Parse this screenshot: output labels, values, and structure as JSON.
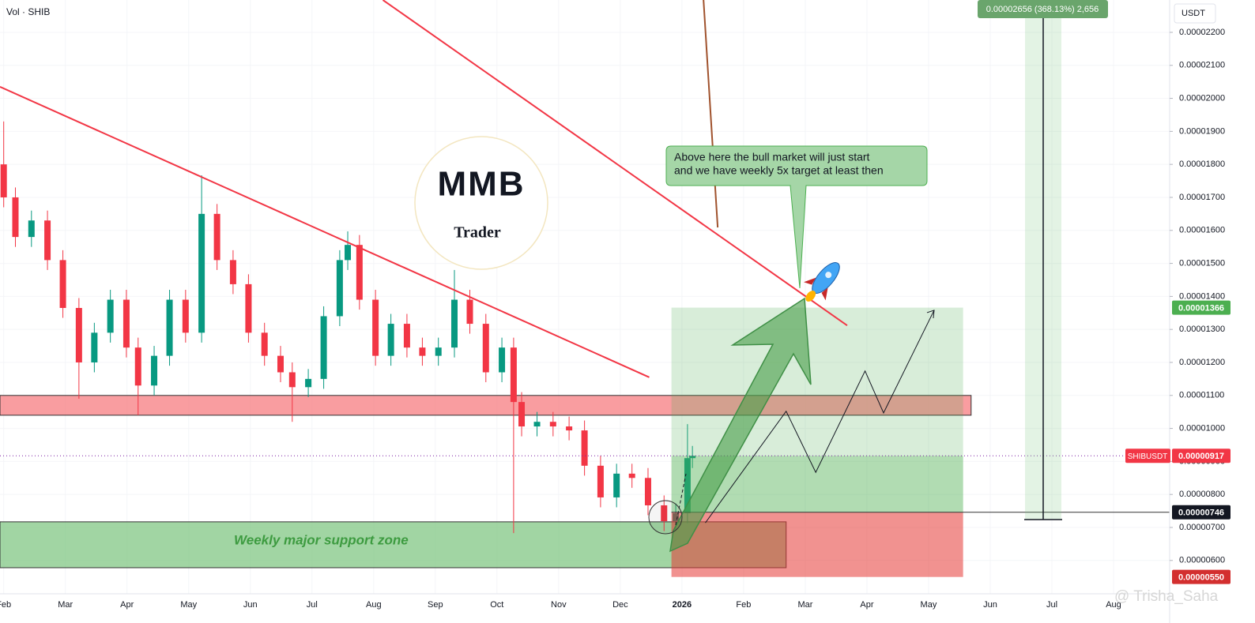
{
  "chart_data": {
    "type": "candlestick",
    "indicator": "Vol · SHIB",
    "currency": "USDT",
    "up_color": "#089981",
    "down_color": "#f23645",
    "grid": true,
    "xlim": [
      0.94,
      19.91
    ],
    "xticks": [
      {
        "value": 1,
        "label": "Feb"
      },
      {
        "value": 2,
        "label": "Mar"
      },
      {
        "value": 3,
        "label": "Apr"
      },
      {
        "value": 4,
        "label": "May"
      },
      {
        "value": 5,
        "label": "Jun"
      },
      {
        "value": 6,
        "label": "Jul"
      },
      {
        "value": 7,
        "label": "Aug"
      },
      {
        "value": 8,
        "label": "Sep"
      },
      {
        "value": 9,
        "label": "Oct"
      },
      {
        "value": 10,
        "label": "Nov"
      },
      {
        "value": 11,
        "label": "Dec"
      },
      {
        "value": 12,
        "label": "2026"
      },
      {
        "value": 13,
        "label": "Feb"
      },
      {
        "value": 14,
        "label": "Mar"
      },
      {
        "value": 15,
        "label": "Apr"
      },
      {
        "value": 16,
        "label": "May"
      },
      {
        "value": 17,
        "label": "Jun"
      },
      {
        "value": 18,
        "label": "Jul"
      },
      {
        "value": 19,
        "label": "Aug"
      }
    ],
    "ylim": [
      4.99e-06,
      2.298e-05
    ],
    "yticks": [
      {
        "value": 6e-06,
        "label": "0.00000600"
      },
      {
        "value": 7e-06,
        "label": "0.00000700"
      },
      {
        "value": 8e-06,
        "label": "0.00000800"
      },
      {
        "value": 9e-06,
        "label": "0.00000900"
      },
      {
        "value": 1e-05,
        "label": "0.00001000"
      },
      {
        "value": 1.1e-05,
        "label": "0.00001100"
      },
      {
        "value": 1.2e-05,
        "label": "0.00001200"
      },
      {
        "value": 1.3e-05,
        "label": "0.00001300"
      },
      {
        "value": 1.4e-05,
        "label": "0.00001400"
      },
      {
        "value": 1.5e-05,
        "label": "0.00001500"
      },
      {
        "value": 1.6e-05,
        "label": "0.00001600"
      },
      {
        "value": 1.7e-05,
        "label": "0.00001700"
      },
      {
        "value": 1.8e-05,
        "label": "0.00001800"
      },
      {
        "value": 1.9e-05,
        "label": "0.00001900"
      },
      {
        "value": 2e-05,
        "label": "0.00002000"
      },
      {
        "value": 2.1e-05,
        "label": "0.00002100"
      },
      {
        "value": 2.2e-05,
        "label": "0.00002200"
      }
    ],
    "x": [
      1.0,
      1.19,
      1.45,
      1.71,
      1.96,
      2.22,
      2.47,
      2.73,
      2.99,
      3.18,
      3.44,
      3.69,
      3.95,
      4.21,
      4.46,
      4.72,
      4.97,
      5.23,
      5.49,
      5.68,
      5.94,
      6.19,
      6.45,
      6.58,
      6.77,
      7.03,
      7.28,
      7.54,
      7.79,
      8.05,
      8.31,
      8.56,
      8.82,
      9.08,
      9.27,
      9.4,
      9.65,
      9.91,
      10.17,
      10.42,
      10.68,
      10.94,
      11.19,
      11.45,
      11.71,
      11.9,
      12.09,
      12.17
    ],
    "open": [
      1.8e-05,
      1.7e-05,
      1.58e-05,
      1.63e-05,
      1.51e-05,
      1.365e-05,
      1.2e-05,
      1.29e-05,
      1.39e-05,
      1.245e-05,
      1.13e-05,
      1.22e-05,
      1.39e-05,
      1.29e-05,
      1.65e-05,
      1.51e-05,
      1.437e-05,
      1.29e-05,
      1.22e-05,
      1.17e-05,
      1.125e-05,
      1.15e-05,
      1.34e-05,
      1.51e-05,
      1.556e-05,
      1.39e-05,
      1.22e-05,
      1.317e-05,
      1.245e-05,
      1.22e-05,
      1.245e-05,
      1.39e-05,
      1.317e-05,
      1.17e-05,
      1.245e-05,
      1.08e-05,
      1.006e-05,
      1.02e-05,
      1.006e-05,
      9.94e-06,
      8.87e-06,
      7.91e-06,
      8.63e-06,
      8.5e-06,
      7.67e-06,
      7.19e-06,
      7.43e-06,
      9.1e-06
    ],
    "high": [
      1.93e-05,
      1.73e-05,
      1.66e-05,
      1.66e-05,
      1.54e-05,
      1.395e-05,
      1.32e-05,
      1.42e-05,
      1.42e-05,
      1.275e-05,
      1.25e-05,
      1.42e-05,
      1.42e-05,
      1.767e-05,
      1.68e-05,
      1.54e-05,
      1.467e-05,
      1.32e-05,
      1.25e-05,
      1.2e-05,
      1.18e-05,
      1.37e-05,
      1.54e-05,
      1.597e-05,
      1.586e-05,
      1.42e-05,
      1.347e-05,
      1.347e-05,
      1.275e-05,
      1.275e-05,
      1.48e-05,
      1.42e-05,
      1.347e-05,
      1.275e-05,
      1.275e-05,
      1.11e-05,
      1.05e-05,
      1.05e-05,
      1.036e-05,
      1.024e-05,
      9.17e-06,
      8.93e-06,
      8.93e-06,
      8.8e-06,
      7.97e-06,
      7.73e-06,
      1.013e-05,
      9.47e-06
    ],
    "low": [
      1.67e-05,
      1.55e-05,
      1.55e-05,
      1.48e-05,
      1.335e-05,
      1.09e-05,
      1.17e-05,
      1.26e-05,
      1.215e-05,
      1.04e-05,
      1.1e-05,
      1.19e-05,
      1.26e-05,
      1.26e-05,
      1.48e-05,
      1.407e-05,
      1.26e-05,
      1.19e-05,
      1.14e-05,
      1.02e-05,
      1.095e-05,
      1.12e-05,
      1.31e-05,
      1.48e-05,
      1.36e-05,
      1.19e-05,
      1.19e-05,
      1.215e-05,
      1.19e-05,
      1.19e-05,
      1.215e-05,
      1.287e-05,
      1.14e-05,
      1.14e-05,
      6.83e-06,
      9.76e-06,
      9.76e-06,
      9.76e-06,
      9.64e-06,
      8.57e-06,
      7.61e-06,
      7.61e-06,
      8.2e-06,
      7.37e-06,
      6.89e-06,
      6.89e-06,
      7.13e-06,
      8.8e-06
    ],
    "close": [
      1.7e-05,
      1.58e-05,
      1.63e-05,
      1.51e-05,
      1.365e-05,
      1.2e-05,
      1.29e-05,
      1.39e-05,
      1.245e-05,
      1.13e-05,
      1.22e-05,
      1.39e-05,
      1.29e-05,
      1.65e-05,
      1.51e-05,
      1.437e-05,
      1.29e-05,
      1.22e-05,
      1.17e-05,
      1.125e-05,
      1.15e-05,
      1.34e-05,
      1.51e-05,
      1.556e-05,
      1.39e-05,
      1.22e-05,
      1.317e-05,
      1.245e-05,
      1.22e-05,
      1.245e-05,
      1.39e-05,
      1.317e-05,
      1.17e-05,
      1.245e-05,
      1.08e-05,
      1.006e-05,
      1.02e-05,
      1.006e-05,
      9.94e-06,
      8.87e-06,
      7.91e-06,
      8.63e-06,
      8.5e-06,
      7.67e-06,
      7.19e-06,
      7.43e-06,
      9.1e-06,
      9.17e-06
    ],
    "last_price": {
      "name": "SHIBUSDT",
      "value": 9.17e-06,
      "label": "0.00000917"
    },
    "zones": [
      {
        "top": 1.1e-05,
        "bottom": 1.04e-05,
        "x": [
          0.94,
          16.69
        ],
        "color": "#f77c80"
      },
      {
        "top": 7.17e-06,
        "bottom": 5.78e-06,
        "x": [
          0.94,
          13.69
        ],
        "color": "#81c784"
      }
    ],
    "trendlines": [
      {
        "x": [
          0.94,
          11.47
        ],
        "y": [
          2.035e-05,
          1.155e-05
        ],
        "color": "#f23645"
      },
      {
        "x": [
          7.15,
          14.68
        ],
        "y": [
          2.298e-05,
          1.312e-05
        ],
        "color": "#f23645"
      },
      {
        "x": [
          12.35,
          12.58
        ],
        "y": [
          2.298e-05,
          1.609e-05
        ],
        "color": "#a0522d"
      }
    ],
    "projection": {
      "x": [
        12.38,
        13.69,
        14.17,
        14.97,
        15.27,
        16.09
      ],
      "y": [
        7.14e-06,
        1.052e-05,
        8.67e-06,
        1.174e-05,
        1.047e-05,
        1.358e-05
      ],
      "color": "#131722"
    },
    "position": {
      "x": [
        11.83,
        16.56
      ],
      "target": {
        "value": 1.366e-05,
        "label": "0.00001366"
      },
      "entry": {
        "value": 7.46e-06,
        "label": "0.00000746"
      },
      "stop": {
        "value": 5.5e-06,
        "label": "0.00000550"
      }
    },
    "annotations": {
      "callout": [
        "Above here the bull market will just start",
        "and we have weekly 5x target at least then"
      ],
      "support_label": "Weekly major support zone",
      "measure_label": "0.00002656 (368.13%) 2,656",
      "logo_mark": "MMB",
      "logo_text": "Trader",
      "watermark": "@ Trisha_Saha"
    }
  }
}
